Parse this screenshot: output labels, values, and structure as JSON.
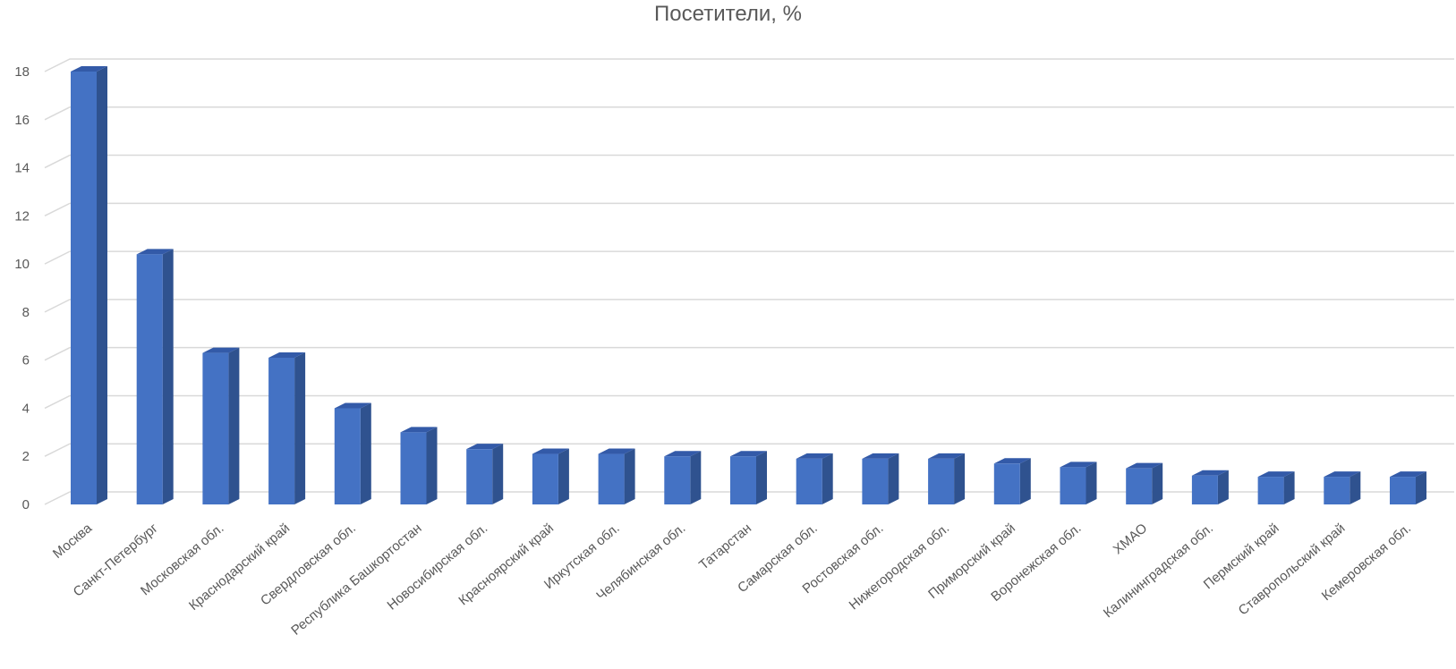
{
  "chart_data": {
    "type": "bar",
    "title": "Посетители, %",
    "xlabel": "",
    "ylabel": "",
    "ylim": [
      0,
      18
    ],
    "yticks": [
      0,
      2,
      4,
      6,
      8,
      10,
      12,
      14,
      16,
      18
    ],
    "grid": true,
    "legend": "none",
    "categories": [
      "Москва",
      "Санкт-Петербург",
      "Московская обл.",
      "Краснодарский край",
      "Свердловская обл.",
      "Республика Башкортостан",
      "Новосибирская обл.",
      "Красноярский край",
      "Иркутская обл.",
      "Челябинская обл.",
      "Татарстан",
      "Самарская обл.",
      "Ростовская обл.",
      "Нижегородская обл.",
      "Приморский край",
      "Воронежская обл.",
      "ХМАО",
      "Калининградская обл.",
      "Пермский край",
      "Ставропольский край",
      "Кемеровская обл."
    ],
    "values": [
      18.0,
      10.4,
      6.3,
      6.1,
      4.0,
      3.0,
      2.3,
      2.1,
      2.1,
      2.0,
      2.0,
      1.9,
      1.9,
      1.9,
      1.7,
      1.55,
      1.5,
      1.2,
      1.15,
      1.15,
      1.15
    ],
    "colors": {
      "bar_front": "#4472C4",
      "bar_side": "#2F528F",
      "bar_top": "#335AA8",
      "grid": "#d9d9d9",
      "text": "#595959"
    }
  }
}
